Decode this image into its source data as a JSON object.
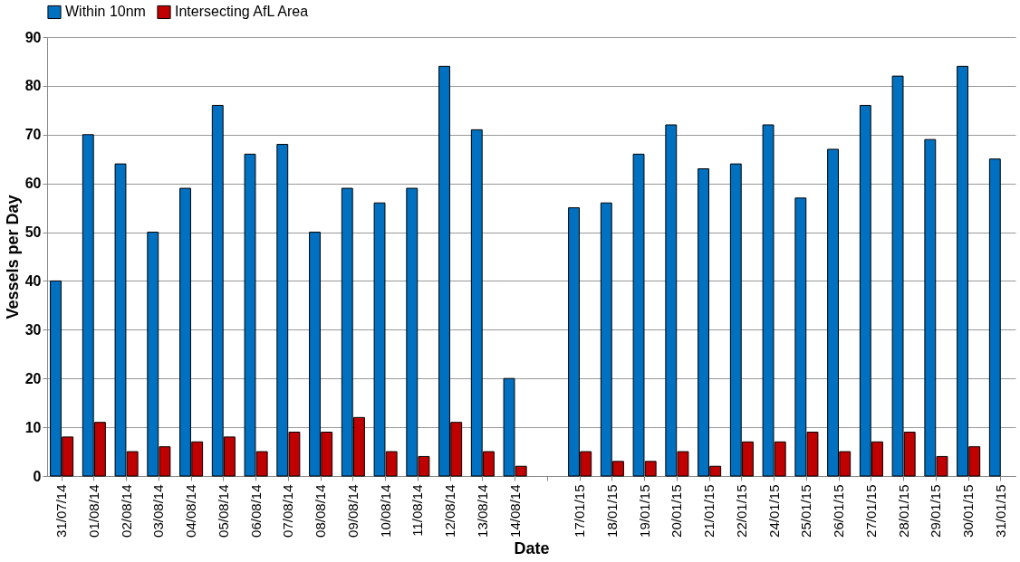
{
  "chart_data": {
    "type": "bar",
    "xlabel": "Date",
    "ylabel": "Vessels per Day",
    "categories": [
      "31/07/14",
      "01/08/14",
      "02/08/14",
      "03/08/14",
      "04/08/14",
      "05/08/14",
      "06/08/14",
      "07/08/14",
      "08/08/14",
      "09/08/14",
      "10/08/14",
      "11/08/14",
      "12/08/14",
      "13/08/14",
      "14/08/14",
      null,
      "17/01/15",
      "18/01/15",
      "19/01/15",
      "20/01/15",
      "21/01/15",
      "22/01/15",
      "24/01/15",
      "25/01/15",
      "26/01/15",
      "27/01/15",
      "28/01/15",
      "29/01/15",
      "30/01/15",
      "31/01/15"
    ],
    "series": [
      {
        "name": "Within 10nm",
        "color": "#0070c0",
        "values": [
          40,
          70,
          64,
          50,
          59,
          76,
          66,
          68,
          50,
          59,
          56,
          59,
          84,
          71,
          20,
          null,
          55,
          56,
          66,
          72,
          63,
          64,
          72,
          57,
          67,
          76,
          82,
          69,
          84,
          65
        ]
      },
      {
        "name": "Intersecting AfL Area",
        "color": "#c00000",
        "values": [
          8,
          11,
          5,
          6,
          7,
          8,
          5,
          9,
          9,
          12,
          5,
          4,
          11,
          5,
          2,
          null,
          5,
          3,
          3,
          5,
          2,
          7,
          7,
          9,
          5,
          7,
          9,
          4,
          6,
          null
        ]
      }
    ],
    "ylim": [
      0,
      90
    ],
    "yticks": [
      0,
      10,
      20,
      30,
      40,
      50,
      60,
      70,
      80,
      90
    ],
    "grid": "y",
    "legend": "top"
  }
}
